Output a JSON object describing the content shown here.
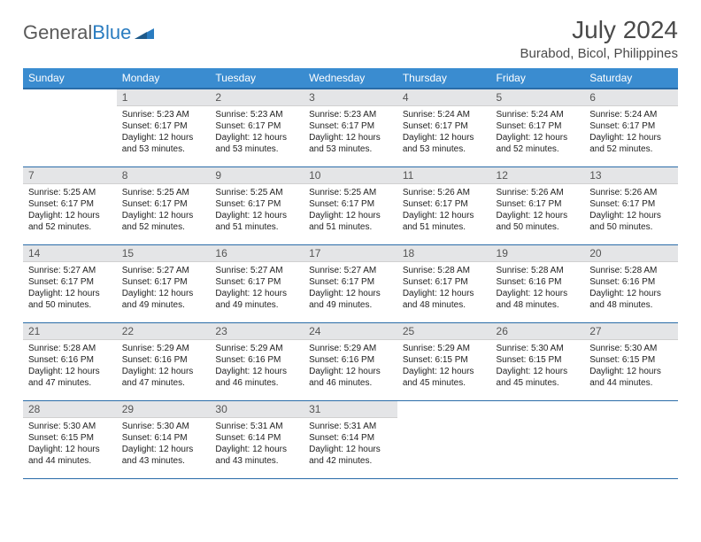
{
  "logo": {
    "text1": "General",
    "text2": "Blue"
  },
  "title": "July 2024",
  "location": "Burabod, Bicol, Philippines",
  "colors": {
    "header_bg": "#3a8cd0",
    "header_border": "#2a6ca8",
    "daynum_bg": "#e4e5e7",
    "text": "#222222",
    "logo_gray": "#5a5a5a",
    "logo_blue": "#2a7cc0"
  },
  "weekdays": [
    "Sunday",
    "Monday",
    "Tuesday",
    "Wednesday",
    "Thursday",
    "Friday",
    "Saturday"
  ],
  "weeks": [
    [
      {
        "day": "",
        "sunrise": "",
        "sunset": "",
        "daylight1": "",
        "daylight2": ""
      },
      {
        "day": "1",
        "sunrise": "Sunrise: 5:23 AM",
        "sunset": "Sunset: 6:17 PM",
        "daylight1": "Daylight: 12 hours",
        "daylight2": "and 53 minutes."
      },
      {
        "day": "2",
        "sunrise": "Sunrise: 5:23 AM",
        "sunset": "Sunset: 6:17 PM",
        "daylight1": "Daylight: 12 hours",
        "daylight2": "and 53 minutes."
      },
      {
        "day": "3",
        "sunrise": "Sunrise: 5:23 AM",
        "sunset": "Sunset: 6:17 PM",
        "daylight1": "Daylight: 12 hours",
        "daylight2": "and 53 minutes."
      },
      {
        "day": "4",
        "sunrise": "Sunrise: 5:24 AM",
        "sunset": "Sunset: 6:17 PM",
        "daylight1": "Daylight: 12 hours",
        "daylight2": "and 53 minutes."
      },
      {
        "day": "5",
        "sunrise": "Sunrise: 5:24 AM",
        "sunset": "Sunset: 6:17 PM",
        "daylight1": "Daylight: 12 hours",
        "daylight2": "and 52 minutes."
      },
      {
        "day": "6",
        "sunrise": "Sunrise: 5:24 AM",
        "sunset": "Sunset: 6:17 PM",
        "daylight1": "Daylight: 12 hours",
        "daylight2": "and 52 minutes."
      }
    ],
    [
      {
        "day": "7",
        "sunrise": "Sunrise: 5:25 AM",
        "sunset": "Sunset: 6:17 PM",
        "daylight1": "Daylight: 12 hours",
        "daylight2": "and 52 minutes."
      },
      {
        "day": "8",
        "sunrise": "Sunrise: 5:25 AM",
        "sunset": "Sunset: 6:17 PM",
        "daylight1": "Daylight: 12 hours",
        "daylight2": "and 52 minutes."
      },
      {
        "day": "9",
        "sunrise": "Sunrise: 5:25 AM",
        "sunset": "Sunset: 6:17 PM",
        "daylight1": "Daylight: 12 hours",
        "daylight2": "and 51 minutes."
      },
      {
        "day": "10",
        "sunrise": "Sunrise: 5:25 AM",
        "sunset": "Sunset: 6:17 PM",
        "daylight1": "Daylight: 12 hours",
        "daylight2": "and 51 minutes."
      },
      {
        "day": "11",
        "sunrise": "Sunrise: 5:26 AM",
        "sunset": "Sunset: 6:17 PM",
        "daylight1": "Daylight: 12 hours",
        "daylight2": "and 51 minutes."
      },
      {
        "day": "12",
        "sunrise": "Sunrise: 5:26 AM",
        "sunset": "Sunset: 6:17 PM",
        "daylight1": "Daylight: 12 hours",
        "daylight2": "and 50 minutes."
      },
      {
        "day": "13",
        "sunrise": "Sunrise: 5:26 AM",
        "sunset": "Sunset: 6:17 PM",
        "daylight1": "Daylight: 12 hours",
        "daylight2": "and 50 minutes."
      }
    ],
    [
      {
        "day": "14",
        "sunrise": "Sunrise: 5:27 AM",
        "sunset": "Sunset: 6:17 PM",
        "daylight1": "Daylight: 12 hours",
        "daylight2": "and 50 minutes."
      },
      {
        "day": "15",
        "sunrise": "Sunrise: 5:27 AM",
        "sunset": "Sunset: 6:17 PM",
        "daylight1": "Daylight: 12 hours",
        "daylight2": "and 49 minutes."
      },
      {
        "day": "16",
        "sunrise": "Sunrise: 5:27 AM",
        "sunset": "Sunset: 6:17 PM",
        "daylight1": "Daylight: 12 hours",
        "daylight2": "and 49 minutes."
      },
      {
        "day": "17",
        "sunrise": "Sunrise: 5:27 AM",
        "sunset": "Sunset: 6:17 PM",
        "daylight1": "Daylight: 12 hours",
        "daylight2": "and 49 minutes."
      },
      {
        "day": "18",
        "sunrise": "Sunrise: 5:28 AM",
        "sunset": "Sunset: 6:17 PM",
        "daylight1": "Daylight: 12 hours",
        "daylight2": "and 48 minutes."
      },
      {
        "day": "19",
        "sunrise": "Sunrise: 5:28 AM",
        "sunset": "Sunset: 6:16 PM",
        "daylight1": "Daylight: 12 hours",
        "daylight2": "and 48 minutes."
      },
      {
        "day": "20",
        "sunrise": "Sunrise: 5:28 AM",
        "sunset": "Sunset: 6:16 PM",
        "daylight1": "Daylight: 12 hours",
        "daylight2": "and 48 minutes."
      }
    ],
    [
      {
        "day": "21",
        "sunrise": "Sunrise: 5:28 AM",
        "sunset": "Sunset: 6:16 PM",
        "daylight1": "Daylight: 12 hours",
        "daylight2": "and 47 minutes."
      },
      {
        "day": "22",
        "sunrise": "Sunrise: 5:29 AM",
        "sunset": "Sunset: 6:16 PM",
        "daylight1": "Daylight: 12 hours",
        "daylight2": "and 47 minutes."
      },
      {
        "day": "23",
        "sunrise": "Sunrise: 5:29 AM",
        "sunset": "Sunset: 6:16 PM",
        "daylight1": "Daylight: 12 hours",
        "daylight2": "and 46 minutes."
      },
      {
        "day": "24",
        "sunrise": "Sunrise: 5:29 AM",
        "sunset": "Sunset: 6:16 PM",
        "daylight1": "Daylight: 12 hours",
        "daylight2": "and 46 minutes."
      },
      {
        "day": "25",
        "sunrise": "Sunrise: 5:29 AM",
        "sunset": "Sunset: 6:15 PM",
        "daylight1": "Daylight: 12 hours",
        "daylight2": "and 45 minutes."
      },
      {
        "day": "26",
        "sunrise": "Sunrise: 5:30 AM",
        "sunset": "Sunset: 6:15 PM",
        "daylight1": "Daylight: 12 hours",
        "daylight2": "and 45 minutes."
      },
      {
        "day": "27",
        "sunrise": "Sunrise: 5:30 AM",
        "sunset": "Sunset: 6:15 PM",
        "daylight1": "Daylight: 12 hours",
        "daylight2": "and 44 minutes."
      }
    ],
    [
      {
        "day": "28",
        "sunrise": "Sunrise: 5:30 AM",
        "sunset": "Sunset: 6:15 PM",
        "daylight1": "Daylight: 12 hours",
        "daylight2": "and 44 minutes."
      },
      {
        "day": "29",
        "sunrise": "Sunrise: 5:30 AM",
        "sunset": "Sunset: 6:14 PM",
        "daylight1": "Daylight: 12 hours",
        "daylight2": "and 43 minutes."
      },
      {
        "day": "30",
        "sunrise": "Sunrise: 5:31 AM",
        "sunset": "Sunset: 6:14 PM",
        "daylight1": "Daylight: 12 hours",
        "daylight2": "and 43 minutes."
      },
      {
        "day": "31",
        "sunrise": "Sunrise: 5:31 AM",
        "sunset": "Sunset: 6:14 PM",
        "daylight1": "Daylight: 12 hours",
        "daylight2": "and 42 minutes."
      },
      {
        "day": "",
        "sunrise": "",
        "sunset": "",
        "daylight1": "",
        "daylight2": ""
      },
      {
        "day": "",
        "sunrise": "",
        "sunset": "",
        "daylight1": "",
        "daylight2": ""
      },
      {
        "day": "",
        "sunrise": "",
        "sunset": "",
        "daylight1": "",
        "daylight2": ""
      }
    ]
  ]
}
